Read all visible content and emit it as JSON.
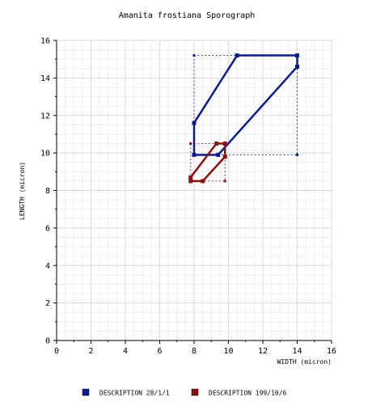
{
  "chart_data": {
    "type": "line",
    "title": "Amanita frostiana Sporograph",
    "xlabel": "WIDTH (micron)",
    "ylabel": "LENGTH (micron)",
    "xlim": [
      0,
      16
    ],
    "ylim": [
      0,
      16
    ],
    "x_ticks": [
      "0",
      "2",
      "4",
      "6",
      "8",
      "10",
      "12",
      "14",
      "16"
    ],
    "y_ticks": [
      "0",
      "2",
      "4",
      "6",
      "8",
      "10",
      "12",
      "14",
      "16"
    ],
    "grid": true,
    "legend_position": "bottom",
    "series": [
      {
        "name": "DESCRIPTION 28/1/1",
        "color": "#0a1a8c",
        "polygon": [
          [
            8.0,
            9.9
          ],
          [
            9.4,
            9.9
          ],
          [
            14.0,
            14.6
          ],
          [
            14.0,
            15.2
          ],
          [
            10.5,
            15.2
          ],
          [
            8.0,
            11.6
          ]
        ],
        "bbox_x": [
          8.0,
          14.0
        ],
        "bbox_y": [
          9.9,
          15.2
        ]
      },
      {
        "name": "DESCRIPTION 199/10/6",
        "color": "#8c1010",
        "polygon": [
          [
            7.8,
            8.5
          ],
          [
            8.5,
            8.5
          ],
          [
            9.8,
            9.8
          ],
          [
            9.8,
            10.5
          ],
          [
            9.3,
            10.5
          ],
          [
            7.8,
            8.7
          ]
        ],
        "bbox_x": [
          7.8,
          9.8
        ],
        "bbox_y": [
          8.5,
          10.5
        ]
      }
    ]
  }
}
